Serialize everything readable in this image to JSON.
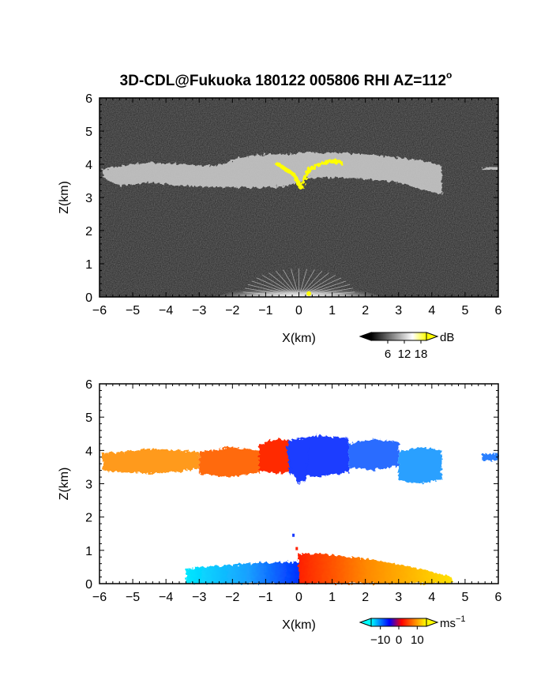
{
  "figure": {
    "title": "3D-CDL@Fukuoka 180122 005806 RHI AZ=112",
    "title_suffix": "o"
  },
  "chart_data": [
    {
      "type": "heatmap",
      "name": "snr-panel",
      "xlabel": "X(km)",
      "ylabel": "Z(km)",
      "xlim": [
        -6,
        6
      ],
      "ylim": [
        0,
        6
      ],
      "xticks": [
        "−6",
        "−5",
        "−4",
        "−3",
        "−2",
        "−1",
        "0",
        "1",
        "2",
        "3",
        "4",
        "5",
        "6"
      ],
      "yticks": [
        "0",
        "1",
        "2",
        "3",
        "4",
        "5",
        "6"
      ],
      "colorbar": {
        "unit": "dB",
        "tick_labels": [
          "6",
          "12",
          "18"
        ],
        "ticks": [
          6,
          12,
          18
        ],
        "range": [
          0,
          20
        ],
        "colors": [
          "#000000",
          "#ffffff",
          "#ffff00"
        ]
      },
      "background": "#2e2e2e",
      "cloud_layer": {
        "top_km": [
          [
            -5.9,
            3.85
          ],
          [
            -5.4,
            3.95
          ],
          [
            -4.5,
            4.05
          ],
          [
            -3.5,
            4.0
          ],
          [
            -2.5,
            3.95
          ],
          [
            -1.8,
            4.2
          ],
          [
            -1.0,
            4.3
          ],
          [
            -0.3,
            4.3
          ],
          [
            0.3,
            4.35
          ],
          [
            1.0,
            4.35
          ],
          [
            2.0,
            4.3
          ],
          [
            3.0,
            4.2
          ],
          [
            3.8,
            4.1
          ],
          [
            4.3,
            3.95
          ]
        ],
        "base_km": [
          [
            -5.9,
            3.6
          ],
          [
            -5.4,
            3.35
          ],
          [
            -4.5,
            3.45
          ],
          [
            -3.5,
            3.35
          ],
          [
            -2.5,
            3.3
          ],
          [
            -1.8,
            3.3
          ],
          [
            -1.0,
            3.3
          ],
          [
            -0.3,
            3.35
          ],
          [
            0.3,
            3.6
          ],
          [
            1.0,
            3.6
          ],
          [
            2.0,
            3.55
          ],
          [
            3.0,
            3.45
          ],
          [
            3.8,
            3.2
          ],
          [
            4.3,
            3.1
          ]
        ],
        "color": "#c8c8c8"
      },
      "bright_echo": [
        [
          -0.7,
          4.05
        ],
        [
          -0.4,
          3.85
        ],
        [
          -0.15,
          3.7
        ],
        [
          0.05,
          3.3
        ],
        [
          0.15,
          3.5
        ],
        [
          0.3,
          3.85
        ],
        [
          0.6,
          4.0
        ],
        [
          1.0,
          4.1
        ],
        [
          1.3,
          4.05
        ]
      ],
      "bright_echo_color": "#ffff00",
      "ground_clutter": {
        "x_range": [
          -2.5,
          2.5
        ],
        "top_km": 0.7
      },
      "far_right_echo": [
        [
          5.5,
          3.85
        ],
        [
          6.0,
          3.9
        ]
      ]
    },
    {
      "type": "heatmap",
      "name": "velocity-panel",
      "xlabel": "X(km)",
      "ylabel": "Z(km)",
      "xlim": [
        -6,
        6
      ],
      "ylim": [
        0,
        6
      ],
      "xticks": [
        "−6",
        "−5",
        "−4",
        "−3",
        "−2",
        "−1",
        "0",
        "1",
        "2",
        "3",
        "4",
        "5",
        "6"
      ],
      "yticks": [
        "0",
        "1",
        "2",
        "3",
        "4",
        "5",
        "6"
      ],
      "colorbar": {
        "unit": "ms",
        "unit_superscript": "−1",
        "tick_labels": [
          "−10",
          "0",
          "10"
        ],
        "ticks": [
          -10,
          0,
          10
        ],
        "range": [
          -15,
          15
        ],
        "colors": [
          "#00ffff",
          "#0000ff",
          "#ff0000",
          "#ffff00"
        ]
      },
      "cloud_layer": {
        "segments": [
          {
            "x": [
              -5.9,
              -3.0
            ],
            "top_km": 4.05,
            "base_km": 3.3,
            "color": "#ff9a1a"
          },
          {
            "x": [
              -3.0,
              -1.2
            ],
            "top_km": 4.1,
            "base_km": 3.2,
            "color": "#ff6a10"
          },
          {
            "x": [
              -1.2,
              0.0
            ],
            "top_km": 4.35,
            "base_km": 3.3,
            "color": "#ff2a00"
          },
          {
            "x": [
              -0.3,
              1.5
            ],
            "top_km": 4.45,
            "base_km": 3.2,
            "color": "#1a3cff"
          },
          {
            "x": [
              1.5,
              3.0
            ],
            "top_km": 4.35,
            "base_km": 3.4,
            "color": "#2a6cff"
          },
          {
            "x": [
              3.0,
              4.3
            ],
            "top_km": 4.1,
            "base_km": 3.0,
            "color": "#2aa0ff"
          }
        ],
        "right_speck": {
          "x": [
            5.5,
            6.0
          ],
          "top_km": 3.9,
          "base_km": 3.7,
          "color": "#2a80ff"
        }
      },
      "low_level": {
        "negative": {
          "x": [
            -3.4,
            0.0
          ],
          "top_km": 0.65,
          "color_far": "#00e8ff",
          "color_near": "#0030ff"
        },
        "positive": {
          "x": [
            0.0,
            4.6
          ],
          "top_km": 0.9,
          "color_near": "#ff2000",
          "color_far": "#ffd000"
        }
      }
    }
  ]
}
